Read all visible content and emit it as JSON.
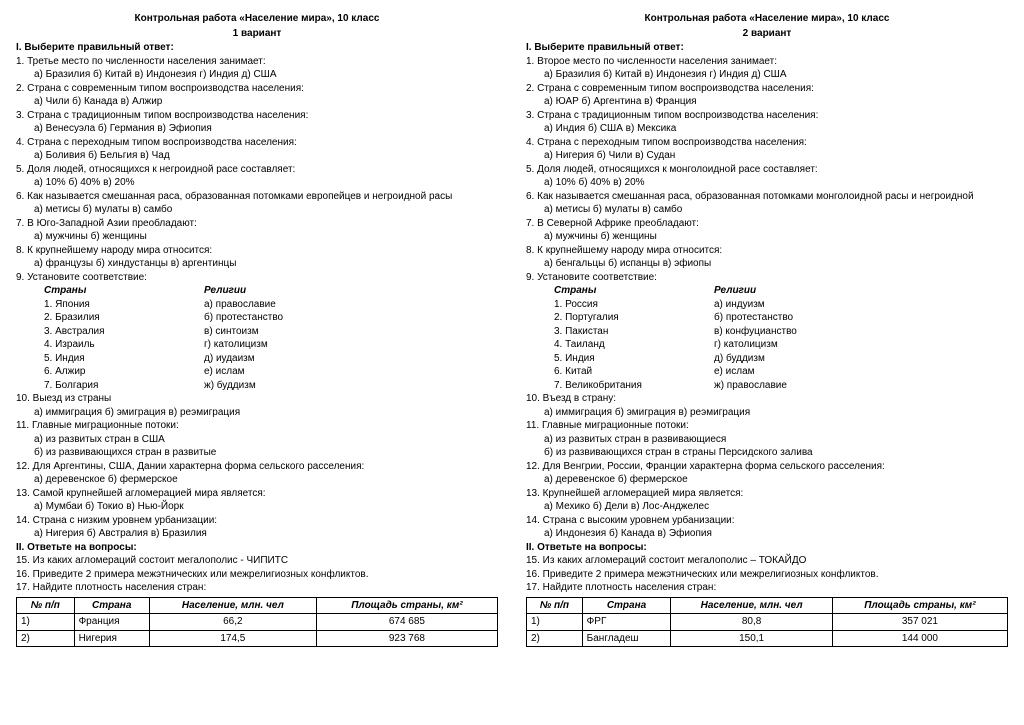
{
  "v1": {
    "title": "Контрольная работа «Население мира», 10 класс",
    "subtitle": "1 вариант",
    "s1": "I. Выберите правильный ответ:",
    "q1": "1. Третье место по численности населения занимает:",
    "q1o": "а) Бразилия    б) Китай   в)   Индонезия   г) Индия   д) США",
    "q2": "2. Страна с современным типом воспроизводства населения:",
    "q2o": "а) Чили        б) Канада        в) Алжир",
    "q3": "3. Страна с традиционным  типом воспроизводства населения:",
    "q3o": "а) Венесуэла    б) Германия    в) Эфиопия",
    "q4": "4. Страна с переходным типом воспроизводства населения:",
    "q4o": "а) Боливия    б) Бельгия    в) Чад",
    "q5": "5. Доля людей, относящихся к негроидной расе составляет:",
    "q5o": "а) 10%        б) 40%        в) 20%",
    "q6": "6. Как называется смешанная раса, образованная потомками европейцев и негроидной расы",
    "q6o": "а) метисы        б) мулаты        в) самбо",
    "q7": "7. В Юго-Западной Азии преобладают:",
    "q7o": "а) мужчины        б) женщины",
    "q8": "8. К крупнейшему народу мира относится:",
    "q8o": "а) французы      б) хиндустанцы      в) аргентинцы",
    "q9": "9. Установите соответствие:",
    "mh1": "Страны",
    "mh2": "Религии",
    "m": [
      [
        "1. Япония",
        "а) православие"
      ],
      [
        "2. Бразилия",
        "б) протестанство"
      ],
      [
        "3. Австралия",
        "в) синтоизм"
      ],
      [
        "4. Израиль",
        "г) католицизм"
      ],
      [
        "5. Индия",
        "д) иудаизм"
      ],
      [
        "6. Алжир",
        "е) ислам"
      ],
      [
        "7. Болгария",
        "ж) буддизм"
      ]
    ],
    "q10": "10. Выезд из страны",
    "q10o": "а) иммиграция        б) эмиграция        в) реэмиграция",
    "q11": "11. Главные миграционные потоки:",
    "q11a": "а) из развитых стран в США",
    "q11b": "б) из развивающихся стран в развитые",
    "q12": "12. Для Аргентины, США, Дании характерна форма сельского расселения:",
    "q12o": "а) деревенское        б) фермерское",
    "q13": "13. Самой крупнейшей агломерацией мира является:",
    "q13o": "а) Мумбаи        б) Токио        в) Нью-Йорк",
    "q14": "14. Страна с низким уровнем  урбанизации:",
    "q14o": "а) Нигерия        б) Австралия        в) Бразилия",
    "s2": "II. Ответьте на вопросы:",
    "q15": "15.  Из каких агломераций состоит мегалополис - ЧИПИТС",
    "q16": "16.  Приведите 2 примера межэтнических или межрелигиозных конфликтов.",
    "q17": "17. Найдите плотность населения стран:",
    "th": [
      "№ п/п",
      "Страна",
      "Население, млн. чел",
      "Площадь страны, км²"
    ],
    "rows": [
      [
        "1)",
        "Франция",
        "66,2",
        "674 685"
      ],
      [
        "2)",
        "Нигерия",
        "174,5",
        "923 768"
      ]
    ]
  },
  "v2": {
    "title": "Контрольная работа «Население мира», 10 класс",
    "subtitle": "2 вариант",
    "s1": "I. Выберите правильный ответ:",
    "q1": "1. Второе место по численности населения занимает:",
    "q1o": "а) Бразилия    б) Китай   в)   Индонезия   г) Индия   д) США",
    "q2": "2. Страна с современным типом воспроизводства населения:",
    "q2o": "а) ЮАР     б) Аргентина     в) Франция",
    "q3": "3. Страна с традиционным  типом воспроизводства населения:",
    "q3o": "а) Индия    б) США    в) Мексика",
    "q4": "4. Страна с переходным типом воспроизводства населения:",
    "q4o": "а) Нигерия    б) Чили    в) Судан",
    "q5": "5. Доля людей, относящихся к монголоидной расе составляет:",
    "q5o": "а) 10%        б) 40%        в) 20%",
    "q6": "6. Как называется смешанная раса, образованная потомками монголоидной расы и  негроидной",
    "q6o": "а) метисы        б) мулаты        в) самбо",
    "q7": "7. В Северной Африке преобладают:",
    "q7o": "а) мужчины        б) женщины",
    "q8": "8. К крупнейшему народу мира относится:",
    "q8o": "а) бенгальцы      б) испанцы      в) эфиопы",
    "q9": "9. Установите соответствие:",
    "mh1": "Страны",
    "mh2": "Религии",
    "m": [
      [
        "1. Россия",
        "а) индуизм"
      ],
      [
        "2. Португалия",
        "б) протестанство"
      ],
      [
        "3. Пакистан",
        "в) конфуцианство"
      ],
      [
        "4. Таиланд",
        "г) католицизм"
      ],
      [
        "5. Индия",
        "д) буддизм"
      ],
      [
        "6. Китай",
        "е) ислам"
      ],
      [
        "7. Великобритания",
        "ж) православие"
      ]
    ],
    "q10": "10. Въезд в страну:",
    "q10o": "а) иммиграция        б) эмиграция        в) реэмиграция",
    "q11": "11. Главные миграционные потоки:",
    "q11a": "а) из развитых стран в развивающиеся",
    "q11b": "б) из развивающихся стран в страны Персидского залива",
    "q12": "12. Для Венгрии, России, Франции характерна форма сельского расселения:",
    "q12o": "а) деревенское        б) фермерское",
    "q13": "13. Крупнейшей агломерацией мира является:",
    "q13o": "а) Мехико        б) Дели        в) Лос-Анджелес",
    "q14": "14. Страна с высоким уровнем  урбанизации:",
    "q14o": "а) Индонезия        б) Канада        в) Эфиопия",
    "s2": "II. Ответьте на вопросы:",
    "q15": "15. Из каких агломераций состоит мегалополис – ТОКАЙДО",
    "q16": "16. Приведите 2 примера межэтнических или межрелигиозных конфликтов.",
    "q17": "17. Найдите плотность населения стран:",
    "th": [
      "№ п/п",
      "Страна",
      "Население, млн. чел",
      "Площадь страны, км²"
    ],
    "rows": [
      [
        "1)",
        "ФРГ",
        "80,8",
        "357 021"
      ],
      [
        "2)",
        "Бангладеш",
        "150,1",
        "144 000"
      ]
    ]
  }
}
